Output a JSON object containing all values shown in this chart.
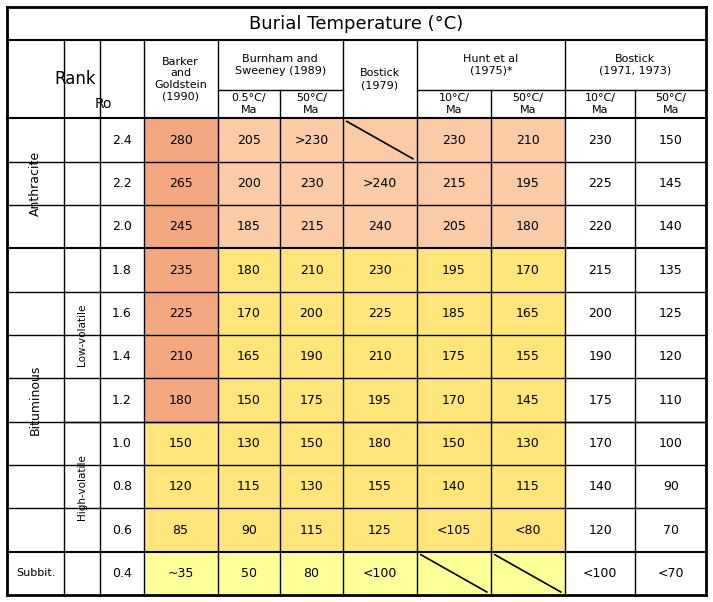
{
  "title": "Burial Temperature (ºC)",
  "rows": [
    {
      "rank_main": "Anthracite",
      "rank_sub": "",
      "ro": "2.4",
      "barker": "280",
      "burn05": "205",
      "burn50": ">230",
      "bostick79": "",
      "hunt10": "230",
      "hunt50": "210",
      "bost71_10": "230",
      "bost71_50": "150",
      "bostick79_slash": true,
      "hunt_slash": false
    },
    {
      "rank_main": "Anthracite",
      "rank_sub": "",
      "ro": "2.2",
      "barker": "265",
      "burn05": "200",
      "burn50": "230",
      "bostick79": ">240",
      "hunt10": "215",
      "hunt50": "195",
      "bost71_10": "225",
      "bost71_50": "145",
      "bostick79_slash": false,
      "hunt_slash": false
    },
    {
      "rank_main": "Anthracite",
      "rank_sub": "",
      "ro": "2.0",
      "barker": "245",
      "burn05": "185",
      "burn50": "215",
      "bostick79": "240",
      "hunt10": "205",
      "hunt50": "180",
      "bost71_10": "220",
      "bost71_50": "140",
      "bostick79_slash": false,
      "hunt_slash": false
    },
    {
      "rank_main": "Bituminous",
      "rank_sub": "Low-volatile",
      "ro": "1.8",
      "barker": "235",
      "burn05": "180",
      "burn50": "210",
      "bostick79": "230",
      "hunt10": "195",
      "hunt50": "170",
      "bost71_10": "215",
      "bost71_50": "135",
      "bostick79_slash": false,
      "hunt_slash": false
    },
    {
      "rank_main": "Bituminous",
      "rank_sub": "Low-volatile",
      "ro": "1.6",
      "barker": "225",
      "burn05": "170",
      "burn50": "200",
      "bostick79": "225",
      "hunt10": "185",
      "hunt50": "165",
      "bost71_10": "200",
      "bost71_50": "125",
      "bostick79_slash": false,
      "hunt_slash": false
    },
    {
      "rank_main": "Bituminous",
      "rank_sub": "Low-volatile",
      "ro": "1.4",
      "barker": "210",
      "burn05": "165",
      "burn50": "190",
      "bostick79": "210",
      "hunt10": "175",
      "hunt50": "155",
      "bost71_10": "190",
      "bost71_50": "120",
      "bostick79_slash": false,
      "hunt_slash": false
    },
    {
      "rank_main": "Bituminous",
      "rank_sub": "Low-volatile",
      "ro": "1.2",
      "barker": "180",
      "burn05": "150",
      "burn50": "175",
      "bostick79": "195",
      "hunt10": "170",
      "hunt50": "145",
      "bost71_10": "175",
      "bost71_50": "110",
      "bostick79_slash": false,
      "hunt_slash": false
    },
    {
      "rank_main": "Bituminous",
      "rank_sub": "High-volatile",
      "ro": "1.0",
      "barker": "150",
      "burn05": "130",
      "burn50": "150",
      "bostick79": "180",
      "hunt10": "150",
      "hunt50": "130",
      "bost71_10": "170",
      "bost71_50": "100",
      "bostick79_slash": false,
      "hunt_slash": false
    },
    {
      "rank_main": "Bituminous",
      "rank_sub": "High-volatile",
      "ro": "0.8",
      "barker": "120",
      "burn05": "115",
      "burn50": "130",
      "bostick79": "155",
      "hunt10": "140",
      "hunt50": "115",
      "bost71_10": "140",
      "bost71_50": "90",
      "bostick79_slash": false,
      "hunt_slash": false
    },
    {
      "rank_main": "Bituminous",
      "rank_sub": "High-volatile",
      "ro": "0.6",
      "barker": "85",
      "burn05": "90",
      "burn50": "115",
      "bostick79": "125",
      "hunt10": "<105",
      "hunt50": "<80",
      "bost71_10": "120",
      "bost71_50": "70",
      "bostick79_slash": false,
      "hunt_slash": false
    },
    {
      "rank_main": "Subbit.",
      "rank_sub": "",
      "ro": "0.4",
      "barker": "~35",
      "burn05": "50",
      "burn50": "80",
      "bostick79": "<100",
      "hunt10": "",
      "hunt50": "",
      "bost71_10": "<100",
      "bost71_50": "<70",
      "bostick79_slash": false,
      "hunt_slash": true
    }
  ],
  "salmon_dark": "#F4A882",
  "salmon_light": "#FBCBA8",
  "yellow_bright": "#FFFF99",
  "yellow_light": "#FFE888",
  "white": "#FFFFFF",
  "bg": "#FFFFFF"
}
